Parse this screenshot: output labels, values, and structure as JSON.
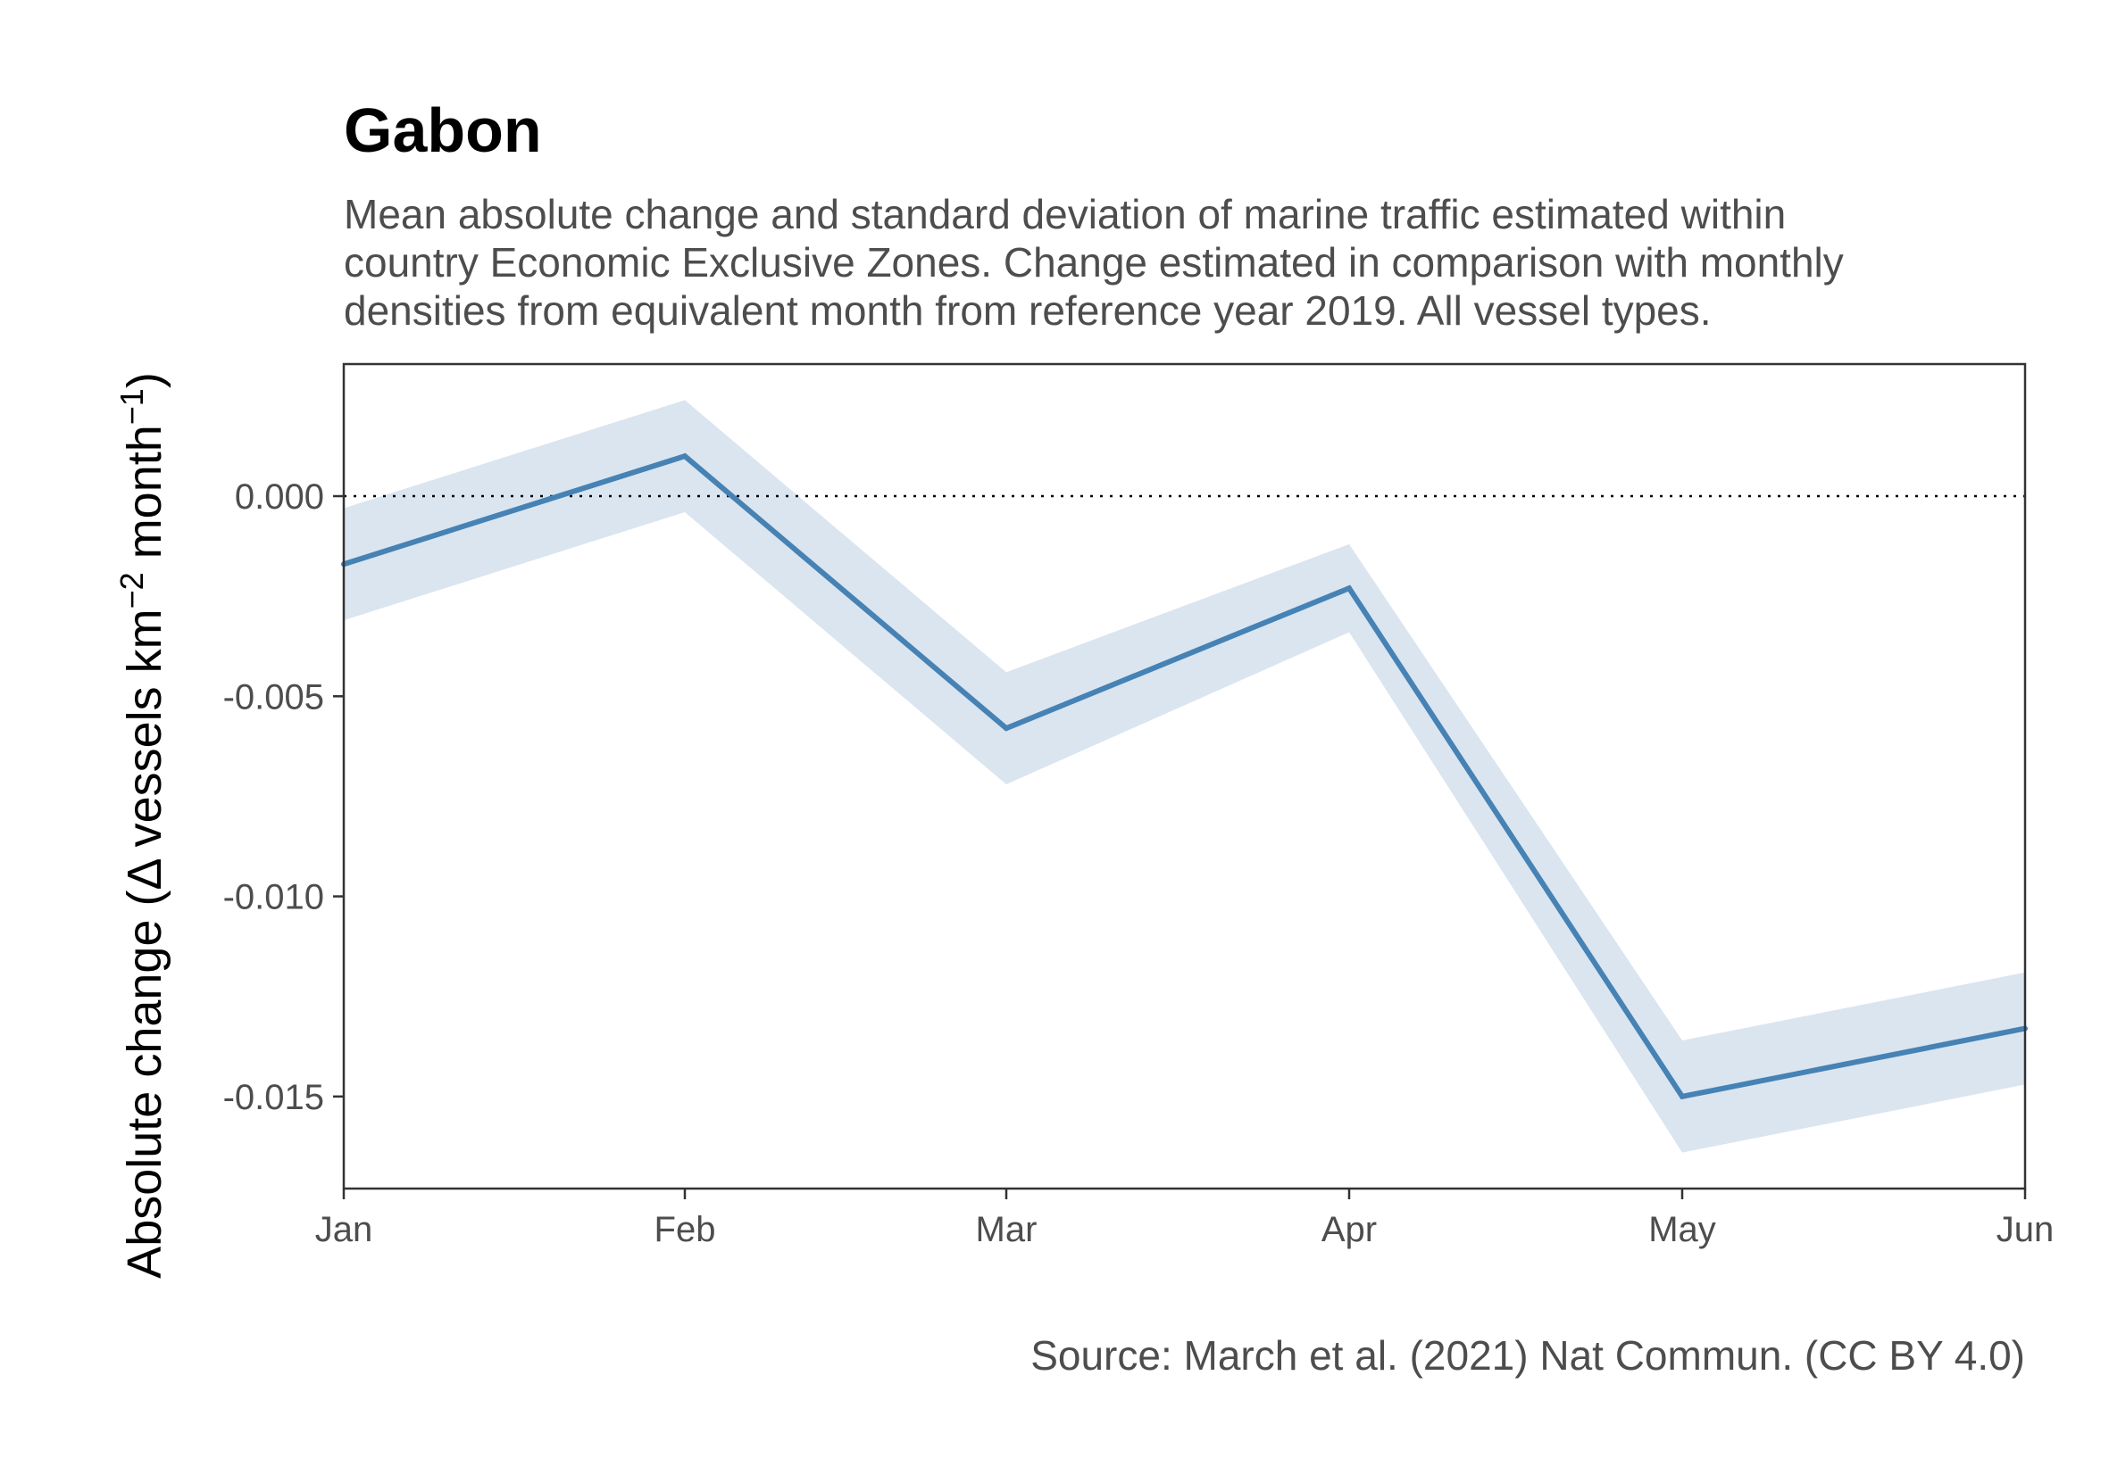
{
  "chart_data": {
    "type": "line",
    "title": "Gabon",
    "subtitle": [
      "Mean absolute change and standard deviation of marine traffic estimated within",
      "country Economic Exclusive Zones. Change estimated in comparison with monthly",
      "densities from equivalent month from reference year 2019. All vessel types."
    ],
    "caption": "Source: March et al. (2021) Nat Commun. (CC BY 4.0)",
    "ylabel": {
      "prefix": "Absolute change (",
      "delta": "Δ",
      "vessels": " vessels km",
      "exp1": "−2",
      "month": " month",
      "exp2": "−1",
      "suffix": ")"
    },
    "xlabel": "",
    "categories": [
      "Jan",
      "Feb",
      "Mar",
      "Apr",
      "May",
      "Jun"
    ],
    "series": [
      {
        "values": [
          -0.0017,
          0.001,
          -0.0058,
          -0.0023,
          -0.015,
          -0.0133
        ],
        "sd": [
          0.0014,
          0.0014,
          0.0014,
          0.0011,
          0.0014,
          0.0014
        ]
      }
    ],
    "reference_line": 0,
    "yticks": [
      0,
      -0.005,
      -0.01,
      -0.015
    ],
    "ytick_labels": [
      "0.000",
      "-0.005",
      "-0.010",
      "-0.015"
    ],
    "ylim": [
      -0.0173,
      0.0033
    ],
    "grid": false,
    "colors": {
      "line": "#4682b4",
      "ribbon": "#dae5f0",
      "panel_border": "#333333",
      "reference_line": "#000000"
    }
  }
}
